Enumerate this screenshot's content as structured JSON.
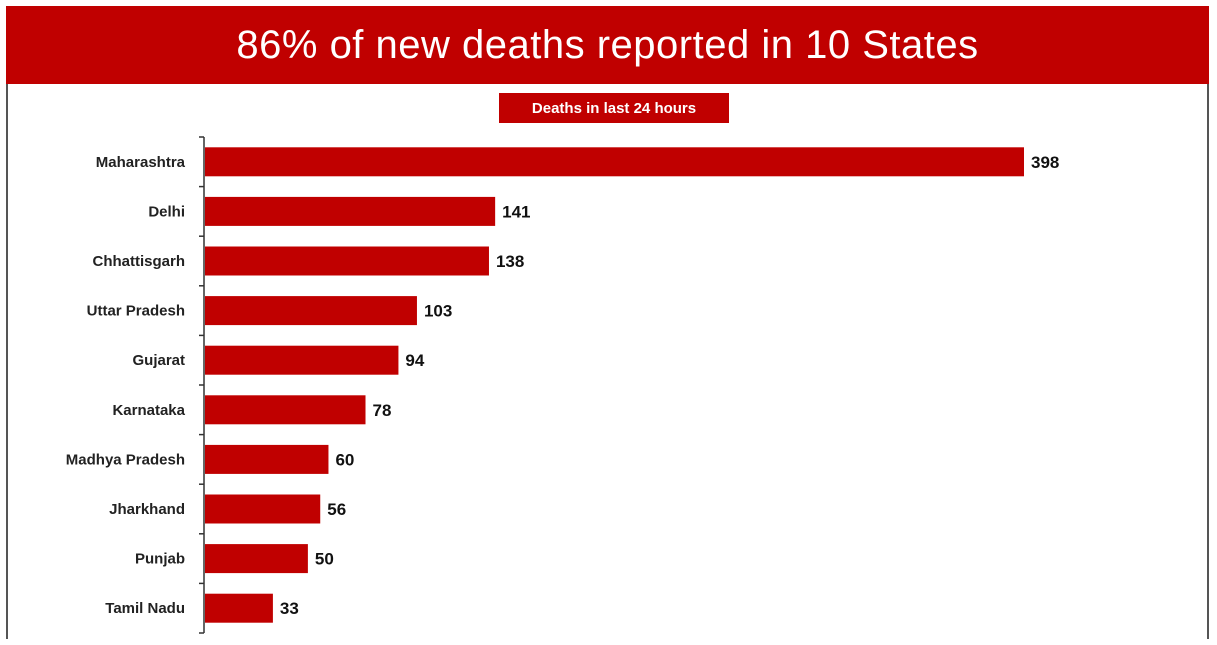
{
  "header": {
    "title": "86% of new deaths reported in 10 States"
  },
  "colors": {
    "accent": "#c00000",
    "bar": "#c00000",
    "axis": "#333333"
  },
  "chart_data": {
    "type": "bar",
    "orientation": "horizontal",
    "title": "86% of new deaths reported in 10 States",
    "subtitle": "Deaths in last 24 hours",
    "categories": [
      "Maharashtra",
      "Delhi",
      "Chhattisgarh",
      "Uttar Pradesh",
      "Gujarat",
      "Karnataka",
      "Madhya Pradesh",
      "Jharkhand",
      "Punjab",
      "Tamil Nadu"
    ],
    "values": [
      398,
      141,
      138,
      103,
      94,
      78,
      60,
      56,
      50,
      33
    ],
    "xlabel": "",
    "ylabel": "",
    "xlim": [
      0,
      398
    ],
    "grid": false,
    "data_labels": true
  }
}
